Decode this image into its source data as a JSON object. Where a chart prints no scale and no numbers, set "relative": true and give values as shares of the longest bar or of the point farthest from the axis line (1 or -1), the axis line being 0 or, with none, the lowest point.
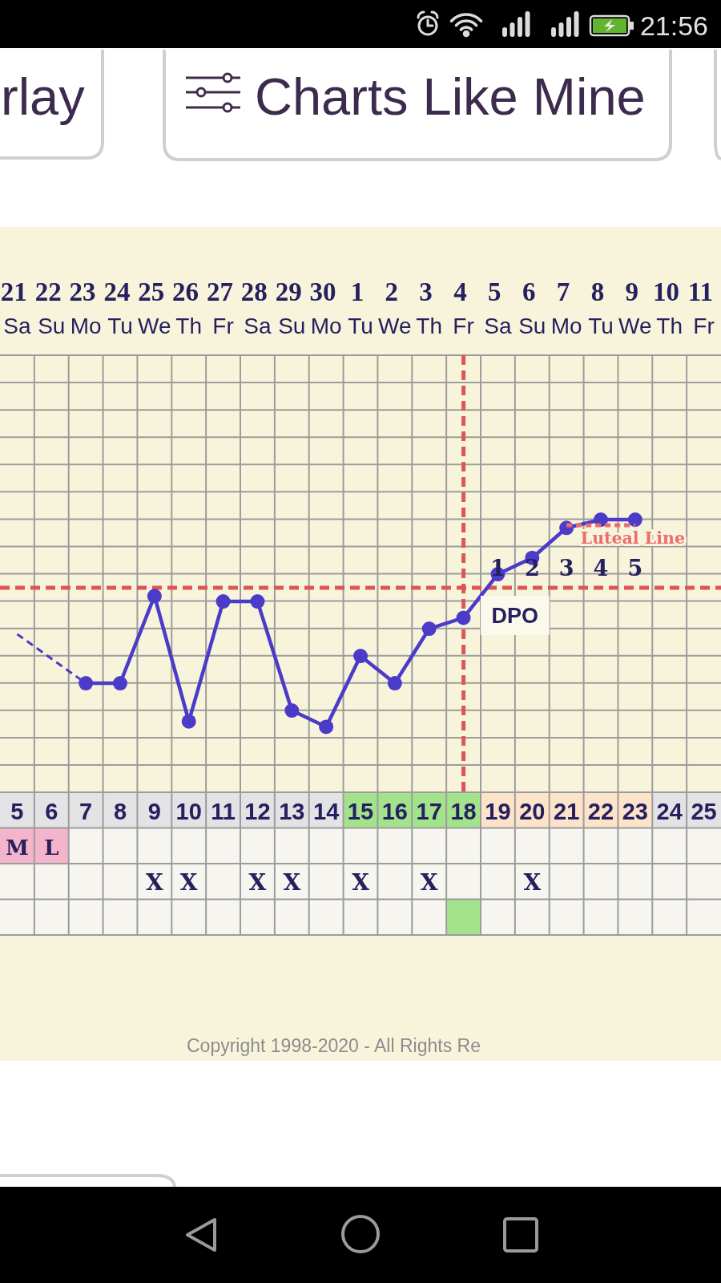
{
  "chart_data": {
    "type": "line",
    "relative": true,
    "categories": [
      "21 Sa",
      "22 Su",
      "23 Mo",
      "24 Tu",
      "25 We",
      "26 Th",
      "27 Fr",
      "28 Sa",
      "29 Su",
      "30 Mo",
      "1 Tu",
      "2 We",
      "3 Th",
      "4 Fr",
      "5 Sa",
      "6 Su",
      "7 Mo",
      "8 Tu",
      "9 We",
      "10 Th",
      "11 Fr"
    ],
    "x2lim": [
      4.5,
      25.5
    ],
    "x2ticks": [
      5,
      6,
      7,
      8,
      9,
      10,
      11,
      12,
      13,
      14,
      15,
      16,
      17,
      18,
      19,
      20,
      21,
      22,
      23,
      24,
      25
    ],
    "grid": true,
    "marker": "circle",
    "series": [
      {
        "color": "#4a3bc9",
        "values": [
          null,
          null,
          0.4,
          0.4,
          0.72,
          0.26,
          0.7,
          0.7,
          0.3,
          0.24,
          0.5,
          0.4,
          0.6,
          0.64,
          0.8,
          0.86,
          0.97,
          1,
          1,
          null,
          null
        ]
      },
      {
        "color": "#4a3bc9",
        "values": [
          0.58,
          0.49,
          0.4,
          null,
          null,
          null,
          null,
          null,
          null,
          null,
          null,
          null,
          null,
          null,
          null,
          null,
          null,
          null,
          null,
          null,
          null
        ],
        "line_style": "dashed",
        "marker": "none"
      },
      {
        "name": "Luteal Line",
        "color": "#ec6d6d",
        "values": [
          null,
          null,
          null,
          null,
          null,
          null,
          null,
          null,
          null,
          null,
          null,
          null,
          null,
          null,
          null,
          null,
          0.98,
          0.98,
          0.98,
          null,
          null
        ],
        "line_style": "dotted",
        "marker": "none"
      }
    ],
    "ref_lines": [
      {
        "axis": "x2",
        "value": 18,
        "color": "#dc5656",
        "line_style": "dashed"
      },
      {
        "axis": "y",
        "value": 0.75,
        "color": "#dc5656",
        "line_style": "dashed"
      }
    ],
    "annotations": [
      "rlay",
      "Charts Like Mine",
      "21:56",
      "Copyright 1998-2020 - All Rights Re",
      "DPO",
      "1",
      "2",
      "3",
      "4",
      "5",
      "M",
      "L",
      "X",
      "X",
      "X",
      "X",
      "X",
      "X",
      "X"
    ]
  }
}
